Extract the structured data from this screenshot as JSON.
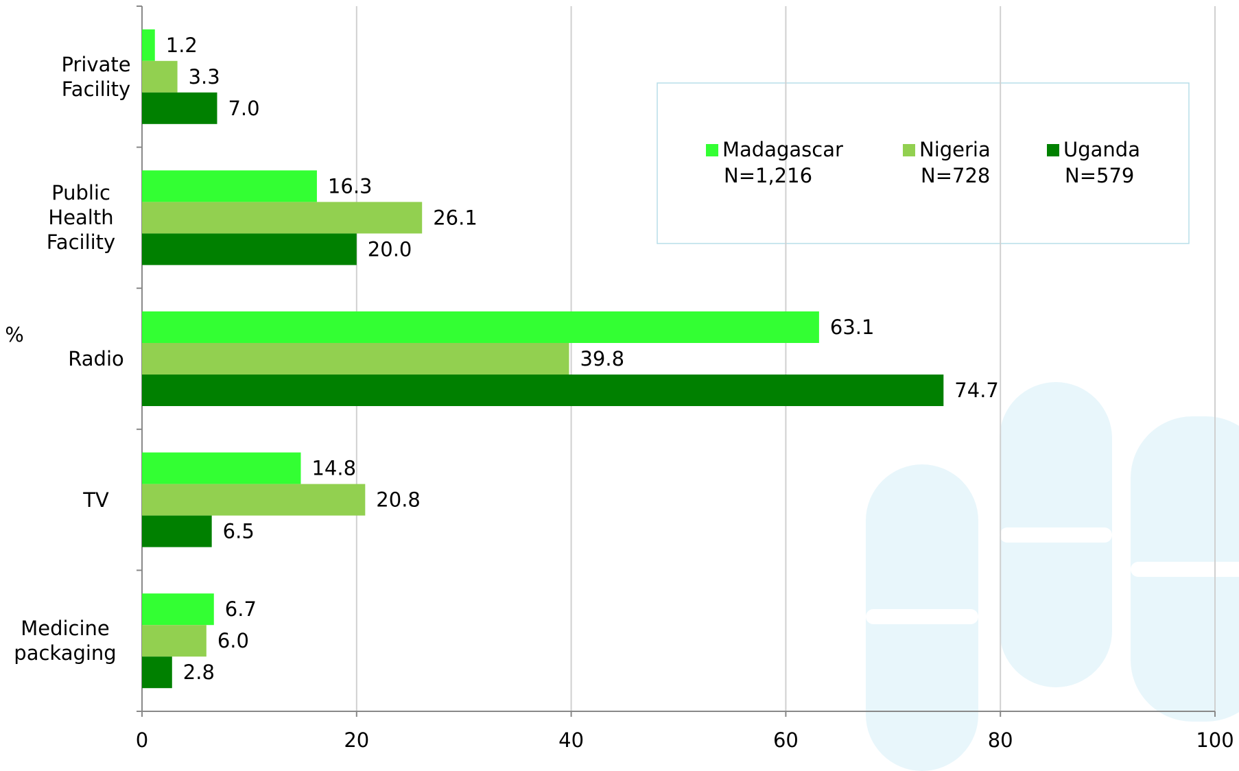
{
  "chart_data": {
    "type": "bar",
    "orientation": "horizontal",
    "y_label": "%",
    "categories": [
      "Private\nFacility",
      "Public\nHealth\nFacility",
      "Radio",
      "TV",
      "Medicine\npackaging"
    ],
    "series": [
      {
        "name": "Madagascar",
        "sample": "N=1,216",
        "color": "#33ff33",
        "values": [
          1.2,
          16.3,
          63.1,
          14.8,
          6.7
        ],
        "value_labels": [
          "1.2",
          "16.3",
          "63.1",
          "14.8",
          "6.7"
        ]
      },
      {
        "name": "Nigeria",
        "sample": "N=728",
        "color": "#92d050",
        "values": [
          3.3,
          26.1,
          39.8,
          20.8,
          6.0
        ],
        "value_labels": [
          "3.3",
          "26.1",
          "39.8",
          "20.8",
          "6.0"
        ]
      },
      {
        "name": "Uganda",
        "sample": "N=579",
        "color": "#008000",
        "values": [
          7.0,
          20.0,
          74.7,
          6.5,
          2.8
        ],
        "value_labels": [
          "7.0",
          "20.0",
          "74.7",
          "6.5",
          "2.8"
        ]
      }
    ],
    "xlim": [
      0,
      100
    ],
    "xticks": [
      0,
      20,
      40,
      60,
      80,
      100
    ],
    "grid": true
  }
}
